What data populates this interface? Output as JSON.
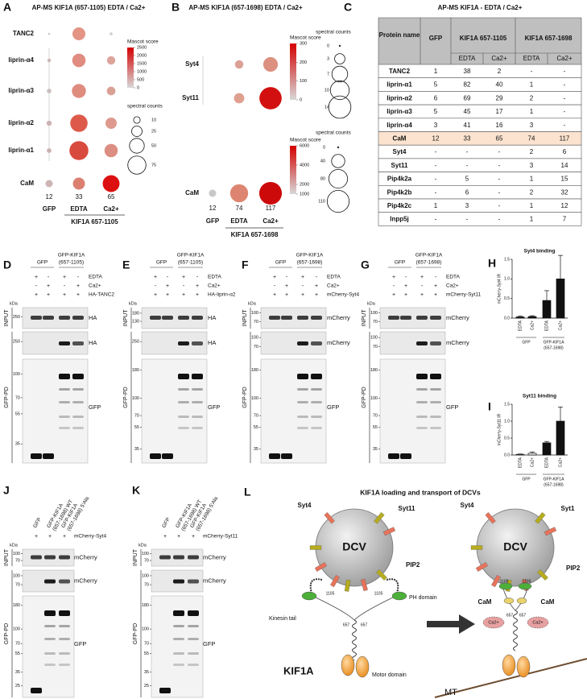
{
  "panel_a": {
    "letter": "A",
    "title": "AP-MS KIF1A (657-1105) EDTA / Ca2+",
    "rows": [
      "TANC2",
      "liprin-α4",
      "liprin-α3",
      "liprin-α2",
      "liprin-α1",
      "CaM"
    ],
    "columns": [
      "GFP",
      "EDTA",
      "Ca2+"
    ],
    "group_label": "KIF1A 657-1105",
    "spectral_counts": [
      [
        1,
        38,
        2
      ],
      [
        3,
        41,
        16
      ],
      [
        5,
        45,
        17
      ],
      [
        6,
        69,
        29
      ],
      [
        5,
        82,
        40
      ],
      [
        12,
        33,
        65
      ]
    ],
    "bubble_colors": [
      [
        "#c8c8c8",
        "#e39484",
        "#d0d0d0"
      ],
      [
        "#d3b8b8",
        "#e08c80",
        "#dba59c"
      ],
      [
        "#cfc0c0",
        "#df8c7f",
        "#d9a094"
      ],
      [
        "#d0b0b0",
        "#dd5a4a",
        "#de9a8e"
      ],
      [
        "#d0b0b0",
        "#d94a3e",
        "#dd8e82"
      ],
      [
        "#cdb5b5",
        "#db8070",
        "#dc1010"
      ]
    ],
    "cam_counts": [
      12,
      33,
      65
    ],
    "legends": [
      {
        "title": "Mascot score",
        "ticks": [
          2500,
          2000,
          1500,
          1000,
          500,
          0
        ]
      },
      {
        "title": "spectral counts",
        "values": [
          10,
          25,
          50,
          75
        ]
      }
    ]
  },
  "panel_b": {
    "letter": "B",
    "title": "AP-MS KIF1A (657-1698) EDTA / Ca2+",
    "rows": [
      "Syt4",
      "Syt11",
      "CaM"
    ],
    "columns": [
      "GFP",
      "EDTA",
      "Ca2+"
    ],
    "group_label": "KIF1A 657-1698",
    "spectral_counts": [
      [
        null,
        2,
        6
      ],
      [
        null,
        3,
        14
      ],
      [
        12,
        74,
        117
      ]
    ],
    "bubble_colors": [
      [
        null,
        "#dba095",
        "#dc9080"
      ],
      [
        null,
        "#e0a090",
        "#d21010"
      ],
      [
        "#c8c8c8",
        "#dd8570",
        "#cc0a0a"
      ]
    ],
    "cam_counts": [
      12,
      74,
      117
    ],
    "legends": [
      {
        "title": "Mascot score",
        "ticks": [
          300,
          200,
          100,
          0
        ]
      },
      {
        "title": "spectral counts",
        "values": [
          0,
          3,
          7,
          10,
          14
        ]
      },
      {
        "title": "Mascot score",
        "ticks": [
          6000,
          4000,
          2000,
          1000
        ]
      },
      {
        "title": "spectral counts",
        "values": [
          0,
          40,
          80,
          110
        ]
      }
    ]
  },
  "panel_c": {
    "letter": "C",
    "title": "AP-MS KIF1A - EDTA / Ca2+",
    "header": [
      "Protein name",
      "GFP",
      "KIF1A 657-1105",
      "KIF1A 657-1698"
    ],
    "subheader": [
      "EDTA",
      "Ca2+",
      "EDTA",
      "Ca2+"
    ],
    "rows": [
      [
        "TANC2",
        "1",
        "38",
        "2",
        "-",
        "-"
      ],
      [
        "liprin-α1",
        "5",
        "82",
        "40",
        "1",
        "-"
      ],
      [
        "liprin-α2",
        "6",
        "69",
        "29",
        "2",
        "-"
      ],
      [
        "liprin-α3",
        "5",
        "45",
        "17",
        "1",
        "-"
      ],
      [
        "liprin-α4",
        "3",
        "41",
        "16",
        "3",
        "-"
      ],
      [
        "CaM",
        "12",
        "33",
        "65",
        "74",
        "117"
      ],
      [
        "Syt4",
        "-",
        "-",
        "-",
        "2",
        "6"
      ],
      [
        "Syt11",
        "-",
        "-",
        "-",
        "3",
        "14"
      ],
      [
        "Pip4k2a",
        "-",
        "5",
        "-",
        "1",
        "15"
      ],
      [
        "Pip4k2b",
        "-",
        "6",
        "-",
        "2",
        "32"
      ],
      [
        "Pip4k2c",
        "1",
        "3",
        "-",
        "1",
        "12"
      ],
      [
        "Inpp5j",
        "-",
        "-",
        "-",
        "1",
        "7"
      ]
    ]
  },
  "blots": [
    {
      "letter": "D",
      "lane_headers": [
        [
          "GFP"
        ],
        [
          "GFP-KIF1A",
          "(657-1105)"
        ]
      ],
      "conditions": [
        {
          "name": "EDTA",
          "signs": [
            "+",
            "-",
            "+",
            "-"
          ]
        },
        {
          "name": "Ca2+",
          "signs": [
            "-",
            "+",
            "-",
            "+"
          ]
        },
        {
          "name": "HA-TANC2",
          "signs": [
            "+",
            "+",
            "+",
            "+"
          ]
        }
      ],
      "unit": "kDa",
      "sections": [
        {
          "name": "INPUT",
          "blots": [
            {
              "label": "HA",
              "ticks": [
                250
              ]
            }
          ]
        },
        {
          "name": "GFP-PD",
          "blots": [
            {
              "label": "HA",
              "ticks": [
                250
              ]
            },
            {
              "label": "GFP",
              "ticks": [
                100,
                70,
                55,
                35
              ]
            }
          ]
        }
      ]
    },
    {
      "letter": "E",
      "lane_headers": [
        [
          "GFP"
        ],
        [
          "GFP-KIF1A",
          "(657-1105)"
        ]
      ],
      "conditions": [
        {
          "name": "EDTA",
          "signs": [
            "+",
            "-",
            "+",
            "-"
          ]
        },
        {
          "name": "Ca2+",
          "signs": [
            "-",
            "+",
            "-",
            "+"
          ]
        },
        {
          "name": "HA-liprin-α2",
          "signs": [
            "+",
            "+",
            "+",
            "+"
          ]
        }
      ],
      "unit": "kDa",
      "sections": [
        {
          "name": "INPUT",
          "blots": [
            {
              "label": "HA",
              "ticks": [
                180,
                130
              ]
            }
          ]
        },
        {
          "name": "GFP-PD",
          "blots": [
            {
              "label": "HA",
              "ticks": [
                250
              ]
            },
            {
              "label": "GFP",
              "ticks": [
                180,
                100,
                70,
                55,
                35
              ]
            }
          ]
        }
      ]
    },
    {
      "letter": "F",
      "lane_headers": [
        [
          "GFP"
        ],
        [
          "GFP-KIF1A",
          "(657-1698)"
        ]
      ],
      "conditions": [
        {
          "name": "EDTA",
          "signs": [
            "+",
            "-",
            "+",
            "-"
          ]
        },
        {
          "name": "Ca2+",
          "signs": [
            "-",
            "+",
            "-",
            "+"
          ]
        },
        {
          "name": "mCherry-Syt4",
          "signs": [
            "+",
            "+",
            "+",
            "+"
          ]
        }
      ],
      "unit": "kDa",
      "sections": [
        {
          "name": "INPUT",
          "blots": [
            {
              "label": "mCherry",
              "ticks": [
                100,
                70
              ]
            }
          ]
        },
        {
          "name": "GFP-PD",
          "blots": [
            {
              "label": "mCherry",
              "ticks": [
                100,
                70
              ]
            },
            {
              "label": "GFP",
              "ticks": [
                180,
                100,
                70,
                55,
                35
              ]
            }
          ]
        }
      ]
    },
    {
      "letter": "G",
      "lane_headers": [
        [
          "GFP"
        ],
        [
          "GFP-KIF1A",
          "(657-1698)"
        ]
      ],
      "conditions": [
        {
          "name": "EDTA",
          "signs": [
            "+",
            "-",
            "+",
            "-"
          ]
        },
        {
          "name": "Ca2+",
          "signs": [
            "-",
            "+",
            "-",
            "+"
          ]
        },
        {
          "name": "mCherry-Syt11",
          "signs": [
            "+",
            "+",
            "+",
            "+"
          ]
        }
      ],
      "unit": "kDa",
      "sections": [
        {
          "name": "INPUT",
          "blots": [
            {
              "label": "mCherry",
              "ticks": [
                100,
                70
              ]
            }
          ]
        },
        {
          "name": "GFP-PD",
          "blots": [
            {
              "label": "mCherry",
              "ticks": [
                100,
                70
              ]
            },
            {
              "label": "GFP",
              "ticks": [
                180,
                100,
                70,
                55,
                35
              ]
            }
          ]
        }
      ]
    },
    {
      "letter": "J",
      "lane_headers": [
        [
          "GFP"
        ],
        [
          "GFP-KIF1A",
          "(657-1698) WT"
        ],
        [
          "GFP-KIF1A",
          "(657-1698) 5'Ala"
        ]
      ],
      "conditions": [
        {
          "name": "mCherry-Syt4",
          "signs": [
            "+",
            "+",
            "+"
          ]
        }
      ],
      "unit": "kDa",
      "sections": [
        {
          "name": "INPUT",
          "blots": [
            {
              "label": "mCherry",
              "ticks": [
                100,
                70
              ]
            }
          ]
        },
        {
          "name": "GFP-PD",
          "blots": [
            {
              "label": "mCherry",
              "ticks": [
                100,
                70
              ]
            },
            {
              "label": "GFP",
              "ticks": [
                180,
                100,
                70,
                55,
                35,
                25
              ]
            }
          ]
        }
      ]
    },
    {
      "letter": "K",
      "lane_headers": [
        [
          "GFP"
        ],
        [
          "GFP-KIF1A",
          "(657-1698) WT"
        ],
        [
          "GFP-KIF1A",
          "(657-1698) 5'Ala"
        ]
      ],
      "conditions": [
        {
          "name": "mCherry-Syt11",
          "signs": [
            "+",
            "+",
            "+"
          ]
        }
      ],
      "unit": "kDa",
      "sections": [
        {
          "name": "INPUT",
          "blots": [
            {
              "label": "mCherry",
              "ticks": [
                100,
                70
              ]
            }
          ]
        },
        {
          "name": "GFP-PD",
          "blots": [
            {
              "label": "mCherry",
              "ticks": [
                100,
                70
              ]
            },
            {
              "label": "GFP",
              "ticks": [
                180,
                100,
                70,
                55,
                35,
                25
              ]
            }
          ]
        }
      ]
    }
  ],
  "bar_charts": [
    {
      "letter": "H",
      "type": "bar",
      "title": "Syt4 binding",
      "y_label": "mCherry-Syt4 IR",
      "categories": [
        "EDTA",
        "Ca2+",
        "EDTA",
        "Ca2+"
      ],
      "groups": [
        [
          "GFP"
        ],
        [
          "GFP-KIF1A",
          "(657-1698)"
        ]
      ],
      "values": [
        0.03,
        0.04,
        0.45,
        1.0
      ],
      "errors": [
        0.02,
        0.02,
        0.25,
        0.6
      ],
      "colors": [
        "#111111",
        "#111111",
        "#111111",
        "#111111"
      ],
      "ylim": [
        0,
        1.5
      ],
      "yticks": [
        {
          "value": 0,
          "label": "0.0"
        },
        {
          "value": 0.5,
          "label": "0.5"
        },
        {
          "value": 1,
          "label": "1.0"
        },
        {
          "value": 1.5,
          "label": "1.5"
        }
      ]
    },
    {
      "letter": "I",
      "type": "bar",
      "title": "Syt11 binding",
      "y_label": "mCherry-Syt11 IR",
      "categories": [
        "EDTA",
        "Ca2+",
        "EDTA",
        "Ca2+"
      ],
      "groups": [
        [
          "GFP"
        ],
        [
          "GFP-KIF1A",
          "(657-1698)"
        ]
      ],
      "values": [
        0.02,
        0.05,
        0.36,
        1.0
      ],
      "errors": [
        0.01,
        0.04,
        0.04,
        0.42
      ],
      "colors": [
        "#ffffff",
        "#ffffff",
        "#111111",
        "#111111"
      ],
      "ylim": [
        0,
        1.5
      ],
      "yticks": [
        {
          "value": 0,
          "label": "0.0"
        },
        {
          "value": 0.5,
          "label": "0.5"
        },
        {
          "value": 1,
          "label": "1.0"
        },
        {
          "value": 1.5,
          "label": "1.5"
        }
      ]
    }
  ],
  "panel_l": {
    "letter": "L",
    "title": "KIF1A loading and transport of DCVs",
    "left": {
      "vesicle": "DCV",
      "syt4": "Syt4",
      "syt11": "Syt11",
      "pip2": "PIP2",
      "ph_domain": "PH domain",
      "kinesin_tail": "Kinesin tail",
      "tail_end_left": "1105",
      "tail_end_right": "1105",
      "tail_start_left": "657",
      "tail_start_right": "657",
      "motor_name": "KIF1A",
      "motor_domain": "Motor domain"
    },
    "right": {
      "vesicle": "DCV",
      "syt4": "Syt4",
      "syt1": "Syt1",
      "pip2": "PIP2",
      "cam_left": "CaM",
      "cam_right": "CaM",
      "tail_end_left": "1105",
      "tail_end_right": "1105",
      "tail_start_left": "657",
      "tail_start_right": "657",
      "ca_left": "Ca2+",
      "ca_right": "Ca2+",
      "microtubule": "MT"
    }
  }
}
